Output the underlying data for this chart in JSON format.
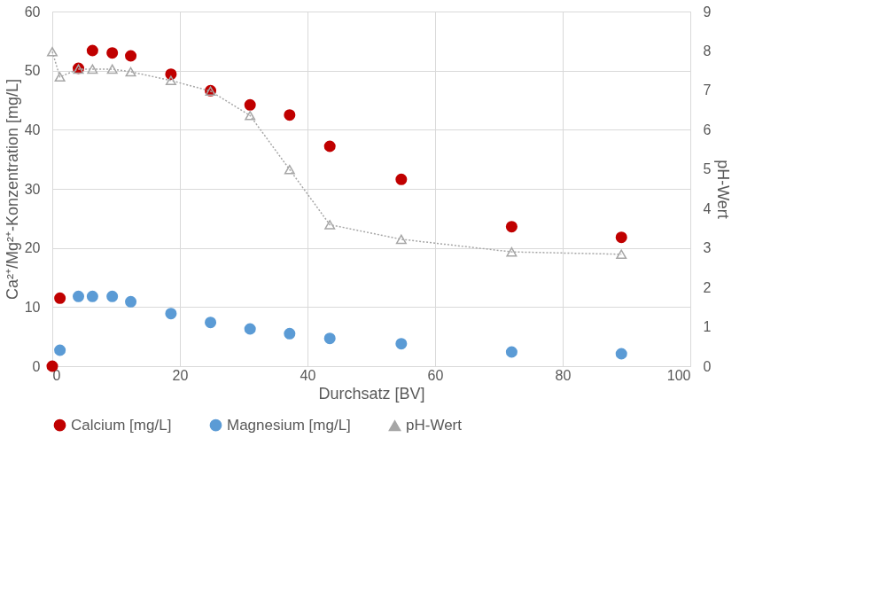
{
  "chart_data": {
    "type": "scatter",
    "xlabel": "Durchsatz [BV]",
    "ylabel": "Ca²⁺/Mg²⁺-Konzentration [mg/L]",
    "y2label": "pH-Wert",
    "xlim": [
      0,
      100
    ],
    "xticks": [
      0,
      20,
      40,
      60,
      80,
      100
    ],
    "ylim": [
      0,
      60
    ],
    "yticks": [
      0,
      10,
      20,
      30,
      40,
      50,
      60
    ],
    "y2lim": [
      0,
      9
    ],
    "y2ticks": [
      0,
      1,
      2,
      3,
      4,
      5,
      6,
      7,
      8,
      9
    ],
    "grid": true,
    "legend": "bottom",
    "series": [
      {
        "name": "Calcium [mg/L]",
        "marker": "circle",
        "color": "#c00000",
        "x": [
          0,
          1.2,
          4.1,
          6.3,
          9.4,
          12.3,
          18.6,
          24.8,
          31,
          37.2,
          43.5,
          54.7,
          72,
          89.2
        ],
        "values": [
          0,
          11.5,
          50.4,
          53.4,
          53,
          52.5,
          49.4,
          46.6,
          44.2,
          42.5,
          37.2,
          31.6,
          23.6,
          21.8
        ]
      },
      {
        "name": "Magnesium [mg/L]",
        "marker": "circle",
        "color": "#5b9bd5",
        "x": [
          1.2,
          4.1,
          6.3,
          9.4,
          12.3,
          18.6,
          24.8,
          31,
          37.2,
          43.5,
          54.7,
          72,
          89.2
        ],
        "values": [
          2.7,
          11.8,
          11.8,
          11.8,
          10.9,
          8.9,
          7.4,
          6.3,
          5.5,
          4.7,
          3.8,
          2.4,
          2.1
        ]
      },
      {
        "name": "pH-Wert",
        "type": "line",
        "marker": "triangle",
        "line_style": "dotted",
        "axis": "y2",
        "color": "#a6a6a6",
        "x": [
          0,
          1.2,
          4.1,
          6.3,
          9.4,
          12.3,
          18.6,
          24.8,
          31,
          37.2,
          43.5,
          54.7,
          72,
          89.2
        ],
        "values": [
          7.98,
          7.34,
          7.54,
          7.54,
          7.54,
          7.47,
          7.25,
          6.98,
          6.36,
          4.99,
          3.59,
          3.22,
          2.9,
          2.84
        ]
      }
    ]
  }
}
